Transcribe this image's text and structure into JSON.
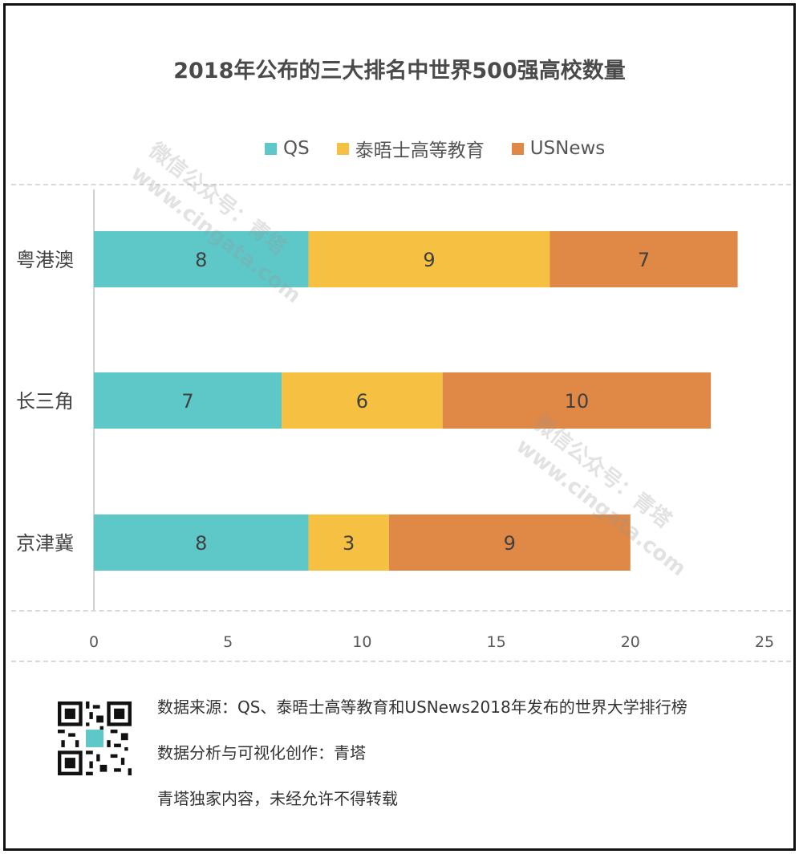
{
  "chart_data": {
    "type": "bar",
    "orientation": "horizontal",
    "stacked": true,
    "title": "2018年公布的三大排名中世界500强高校数量",
    "categories": [
      "粤港澳",
      "长三角",
      "京津冀"
    ],
    "series": [
      {
        "name": "QS",
        "values": [
          8,
          7,
          8
        ],
        "color": "#5ec8c9"
      },
      {
        "name": "泰晤士高等教育",
        "values": [
          9,
          6,
          3
        ],
        "color": "#f6c142"
      },
      {
        "name": "USNews",
        "values": [
          7,
          10,
          9
        ],
        "color": "#e08846"
      }
    ],
    "xlim": [
      0,
      25
    ],
    "xticks": [
      0,
      5,
      10,
      15,
      20,
      25
    ],
    "xlabel": "",
    "ylabel": "",
    "grid": false,
    "legend_position": "top",
    "data_labels": true
  },
  "watermark": {
    "line1": "微信公众号：青塔",
    "line2": "www.cingata.com"
  },
  "footer": {
    "source": "数据来源：QS、泰晤士高等教育和USNews2018年发布的世界大学排行榜",
    "analysis": "数据分析与可视化创作：青塔",
    "copyright": "青塔独家内容，未经允许不得转载",
    "qr_icon": "qr-code-icon"
  }
}
